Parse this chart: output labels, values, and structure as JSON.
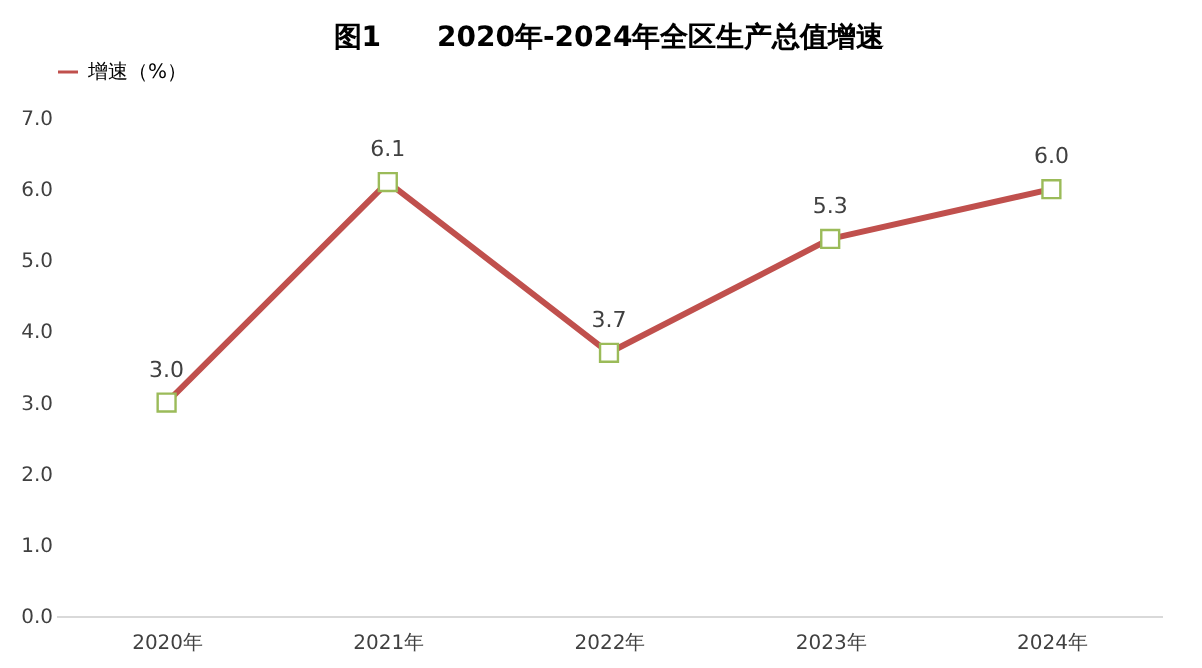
{
  "chart_data": {
    "type": "line",
    "title": "图1　　2020年-2024年全区生产总值增速",
    "categories": [
      "2020年",
      "2021年",
      "2022年",
      "2023年",
      "2024年"
    ],
    "series": [
      {
        "name": "增速（%）",
        "color": "#c0504d",
        "values": [
          3.0,
          6.1,
          3.7,
          5.3,
          6.0
        ],
        "value_labels": [
          "3.0",
          "6.1",
          "3.7",
          "5.3",
          "6.0"
        ]
      }
    ],
    "ylim": [
      0,
      7
    ],
    "yticks": [
      {
        "value": 0,
        "label": "0.0"
      },
      {
        "value": 1,
        "label": "1.0"
      },
      {
        "value": 2,
        "label": "2.0"
      },
      {
        "value": 3,
        "label": "3.0"
      },
      {
        "value": 4,
        "label": "4.0"
      },
      {
        "value": 5,
        "label": "5.0"
      },
      {
        "value": 6,
        "label": "6.0"
      },
      {
        "value": 7,
        "label": "7.0"
      }
    ],
    "marker": "square",
    "legend": "top",
    "grid": false
  }
}
